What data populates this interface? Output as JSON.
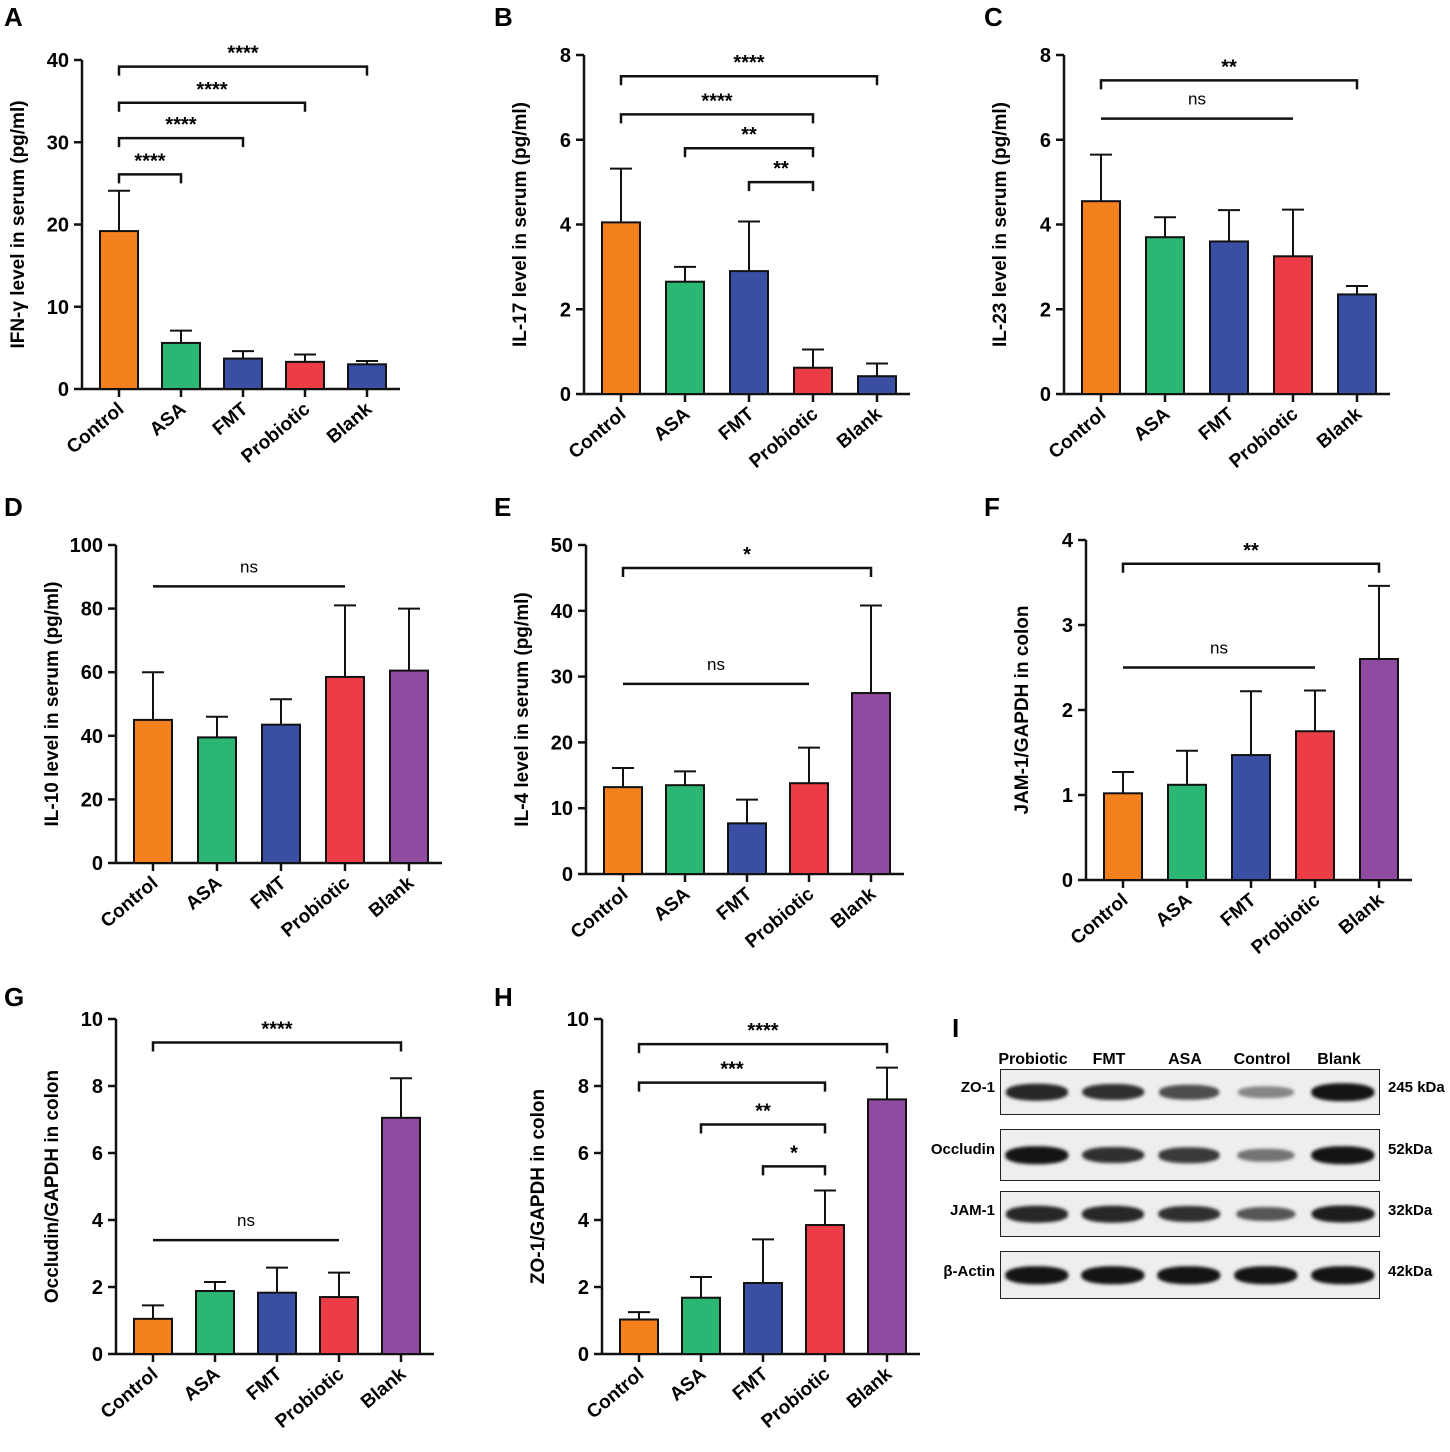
{
  "colors": {
    "orange": "#F4801E",
    "green": "#2BB673",
    "blue": "#3A4FA3",
    "red": "#EC3C45",
    "purple": "#8E4B9F"
  },
  "panels": [
    {
      "letter": "A",
      "ylabel": "IFN-γ level in serum (pg/ml)",
      "ylim": [
        0,
        40
      ],
      "yticks": [
        0,
        10,
        20,
        30,
        40
      ],
      "categories": [
        "Control",
        "ASA",
        "FMT",
        "Probiotic",
        "Blank"
      ],
      "values": [
        19.2,
        5.6,
        3.7,
        3.3,
        3.0
      ],
      "errors": [
        4.9,
        1.5,
        0.9,
        0.9,
        0.4
      ],
      "colors": [
        "#F4801E",
        "#2BB673",
        "#3A4FA3",
        "#EC3C45",
        "#3A4FA3"
      ],
      "brackets": [
        {
          "from": 0,
          "to": 4,
          "y": 39.2,
          "label": "****"
        },
        {
          "from": 0,
          "to": 3,
          "y": 34.8,
          "label": "****"
        },
        {
          "from": 0,
          "to": 2,
          "y": 30.5,
          "label": "****"
        },
        {
          "from": 0,
          "to": 1,
          "y": 26.1,
          "label": "****"
        }
      ]
    },
    {
      "letter": "B",
      "ylabel": "IL-17 level in serum (pg/ml)",
      "ylim": [
        0,
        8
      ],
      "yticks": [
        0,
        2,
        4,
        6,
        8
      ],
      "categories": [
        "Control",
        "ASA",
        "FMT",
        "Probiotic",
        "Blank"
      ],
      "values": [
        4.05,
        2.65,
        2.9,
        0.62,
        0.42
      ],
      "errors": [
        1.27,
        0.35,
        1.17,
        0.43,
        0.3
      ],
      "colors": [
        "#F4801E",
        "#2BB673",
        "#3A4FA3",
        "#EC3C45",
        "#3A4FA3"
      ],
      "brackets": [
        {
          "from": 0,
          "to": 4,
          "y": 7.5,
          "label": "****"
        },
        {
          "from": 0,
          "to": 3,
          "y": 6.6,
          "label": "****"
        },
        {
          "from": 1,
          "to": 3,
          "y": 5.8,
          "label": "**"
        },
        {
          "from": 2,
          "to": 3,
          "y": 5.0,
          "label": "**"
        }
      ]
    },
    {
      "letter": "C",
      "ylabel": "IL-23 level in serum (pg/ml)",
      "ylim": [
        0,
        8
      ],
      "yticks": [
        0,
        2,
        4,
        6,
        8
      ],
      "categories": [
        "Control",
        "ASA",
        "FMT",
        "Probiotic",
        "Blank"
      ],
      "values": [
        4.55,
        3.7,
        3.6,
        3.25,
        2.35
      ],
      "errors": [
        1.1,
        0.47,
        0.74,
        1.1,
        0.2
      ],
      "colors": [
        "#F4801E",
        "#2BB673",
        "#3A4FA3",
        "#EC3C45",
        "#3A4FA3"
      ],
      "brackets": [
        {
          "from": 0,
          "to": 4,
          "y": 7.4,
          "label": "**"
        },
        {
          "from": 0,
          "to": 3,
          "y": 6.5,
          "label": "ns",
          "flat": true
        }
      ]
    },
    {
      "letter": "D",
      "ylabel": "IL-10 level in serum (pg/ml)",
      "ylim": [
        0,
        100
      ],
      "yticks": [
        0,
        20,
        40,
        60,
        80,
        100
      ],
      "categories": [
        "Control",
        "ASA",
        "FMT",
        "Probiotic",
        "Blank"
      ],
      "values": [
        45.0,
        39.5,
        43.5,
        58.5,
        60.5
      ],
      "errors": [
        15.0,
        6.5,
        8.0,
        22.5,
        19.5
      ],
      "colors": [
        "#F4801E",
        "#2BB673",
        "#3A4FA3",
        "#EC3C45",
        "#8E4B9F"
      ],
      "brackets": [
        {
          "from": 0,
          "to": 3,
          "y": 87,
          "label": "ns",
          "flat": true
        }
      ]
    },
    {
      "letter": "E",
      "ylabel": "IL-4 level in serum (pg/ml)",
      "ylim": [
        0,
        50
      ],
      "yticks": [
        0,
        10,
        20,
        30,
        40,
        50
      ],
      "categories": [
        "Control",
        "ASA",
        "FMT",
        "Probiotic",
        "Blank"
      ],
      "values": [
        13.2,
        13.5,
        7.7,
        13.8,
        27.5
      ],
      "errors": [
        2.9,
        2.1,
        3.6,
        5.4,
        13.3
      ],
      "colors": [
        "#F4801E",
        "#2BB673",
        "#3A4FA3",
        "#EC3C45",
        "#8E4B9F"
      ],
      "brackets": [
        {
          "from": 0,
          "to": 4,
          "y": 46.5,
          "label": "*"
        },
        {
          "from": 0,
          "to": 3,
          "y": 28.9,
          "label": "ns",
          "flat": true
        }
      ]
    },
    {
      "letter": "F",
      "ylabel": "JAM-1/GAPDH in colon",
      "ylim": [
        0,
        4
      ],
      "yticks": [
        0,
        1,
        2,
        3,
        4
      ],
      "categories": [
        "Control",
        "ASA",
        "FMT",
        "Probiotic",
        "Blank"
      ],
      "values": [
        1.02,
        1.12,
        1.47,
        1.75,
        2.6
      ],
      "errors": [
        0.25,
        0.4,
        0.75,
        0.48,
        0.86
      ],
      "colors": [
        "#F4801E",
        "#2BB673",
        "#3A4FA3",
        "#EC3C45",
        "#8E4B9F"
      ],
      "brackets": [
        {
          "from": 0,
          "to": 4,
          "y": 3.72,
          "label": "**"
        },
        {
          "from": 0,
          "to": 3,
          "y": 2.5,
          "label": "ns",
          "flat": true
        }
      ]
    },
    {
      "letter": "G",
      "ylabel": "Occludin/GAPDH in colon",
      "ylim": [
        0,
        10
      ],
      "yticks": [
        0,
        2,
        4,
        6,
        8,
        10
      ],
      "categories": [
        "Control",
        "ASA",
        "FMT",
        "Probiotic",
        "Blank"
      ],
      "values": [
        1.05,
        1.88,
        1.83,
        1.7,
        7.05
      ],
      "errors": [
        0.4,
        0.27,
        0.75,
        0.73,
        1.18
      ],
      "colors": [
        "#F4801E",
        "#2BB673",
        "#3A4FA3",
        "#EC3C45",
        "#8E4B9F"
      ],
      "brackets": [
        {
          "from": 0,
          "to": 4,
          "y": 9.3,
          "label": "****"
        },
        {
          "from": 0,
          "to": 3,
          "y": 3.4,
          "label": "ns",
          "flat": true
        }
      ]
    },
    {
      "letter": "H",
      "ylabel": "ZO-1/GAPDH in colon",
      "ylim": [
        0,
        10
      ],
      "yticks": [
        0,
        2,
        4,
        6,
        8,
        10
      ],
      "categories": [
        "Control",
        "ASA",
        "FMT",
        "Probiotic",
        "Blank"
      ],
      "values": [
        1.03,
        1.68,
        2.12,
        3.85,
        7.6
      ],
      "errors": [
        0.22,
        0.62,
        1.3,
        1.03,
        0.95
      ],
      "colors": [
        "#F4801E",
        "#2BB673",
        "#3A4FA3",
        "#EC3C45",
        "#8E4B9F"
      ],
      "brackets": [
        {
          "from": 0,
          "to": 4,
          "y": 9.25,
          "label": "****"
        },
        {
          "from": 0,
          "to": 3,
          "y": 8.1,
          "label": "***"
        },
        {
          "from": 1,
          "to": 3,
          "y": 6.85,
          "label": "**"
        },
        {
          "from": 2,
          "to": 3,
          "y": 5.6,
          "label": "*"
        }
      ]
    }
  ],
  "chart_data": [
    {
      "type": "bar",
      "title": "A",
      "ylabel": "IFN-γ level in serum (pg/ml)",
      "categories": [
        "Control",
        "ASA",
        "FMT",
        "Probiotic",
        "Blank"
      ],
      "values": [
        19.2,
        5.6,
        3.7,
        3.3,
        3.0
      ],
      "ylim": [
        0,
        40
      ]
    },
    {
      "type": "bar",
      "title": "B",
      "ylabel": "IL-17 level in serum (pg/ml)",
      "categories": [
        "Control",
        "ASA",
        "FMT",
        "Probiotic",
        "Blank"
      ],
      "values": [
        4.05,
        2.65,
        2.9,
        0.62,
        0.42
      ],
      "ylim": [
        0,
        8
      ]
    },
    {
      "type": "bar",
      "title": "C",
      "ylabel": "IL-23 level in serum (pg/ml)",
      "categories": [
        "Control",
        "ASA",
        "FMT",
        "Probiotic",
        "Blank"
      ],
      "values": [
        4.55,
        3.7,
        3.6,
        3.25,
        2.35
      ],
      "ylim": [
        0,
        8
      ]
    },
    {
      "type": "bar",
      "title": "D",
      "ylabel": "IL-10 level in serum (pg/ml)",
      "categories": [
        "Control",
        "ASA",
        "FMT",
        "Probiotic",
        "Blank"
      ],
      "values": [
        45.0,
        39.5,
        43.5,
        58.5,
        60.5
      ],
      "ylim": [
        0,
        100
      ]
    },
    {
      "type": "bar",
      "title": "E",
      "ylabel": "IL-4 level in serum (pg/ml)",
      "categories": [
        "Control",
        "ASA",
        "FMT",
        "Probiotic",
        "Blank"
      ],
      "values": [
        13.2,
        13.5,
        7.7,
        13.8,
        27.5
      ],
      "ylim": [
        0,
        50
      ]
    },
    {
      "type": "bar",
      "title": "F",
      "ylabel": "JAM-1/GAPDH in colon",
      "categories": [
        "Control",
        "ASA",
        "FMT",
        "Probiotic",
        "Blank"
      ],
      "values": [
        1.02,
        1.12,
        1.47,
        1.75,
        2.6
      ],
      "ylim": [
        0,
        4
      ]
    },
    {
      "type": "bar",
      "title": "G",
      "ylabel": "Occludin/GAPDH in colon",
      "categories": [
        "Control",
        "ASA",
        "FMT",
        "Probiotic",
        "Blank"
      ],
      "values": [
        1.05,
        1.88,
        1.83,
        1.7,
        7.05
      ],
      "ylim": [
        0,
        10
      ]
    },
    {
      "type": "bar",
      "title": "H",
      "ylabel": "ZO-1/GAPDH in colon",
      "categories": [
        "Control",
        "ASA",
        "FMT",
        "Probiotic",
        "Blank"
      ],
      "values": [
        1.03,
        1.68,
        2.12,
        3.85,
        7.6
      ],
      "ylim": [
        0,
        10
      ]
    }
  ],
  "blot": {
    "letter": "I",
    "lanes": [
      "Probiotic",
      "FMT",
      "ASA",
      "Control",
      "Blank"
    ],
    "rows": [
      {
        "label": "ZO-1",
        "kda": "245 kDa",
        "intensities": [
          0.85,
          0.8,
          0.65,
          0.35,
          0.95
        ]
      },
      {
        "label": "Occludin",
        "kda": "52kDa",
        "intensities": [
          0.95,
          0.8,
          0.75,
          0.45,
          0.95
        ]
      },
      {
        "label": "JAM-1",
        "kda": "32kDa",
        "intensities": [
          0.85,
          0.85,
          0.8,
          0.6,
          0.9
        ]
      },
      {
        "label": "β-Actin",
        "kda": "42kDa",
        "intensities": [
          0.95,
          0.95,
          0.95,
          0.95,
          0.95
        ]
      }
    ]
  }
}
